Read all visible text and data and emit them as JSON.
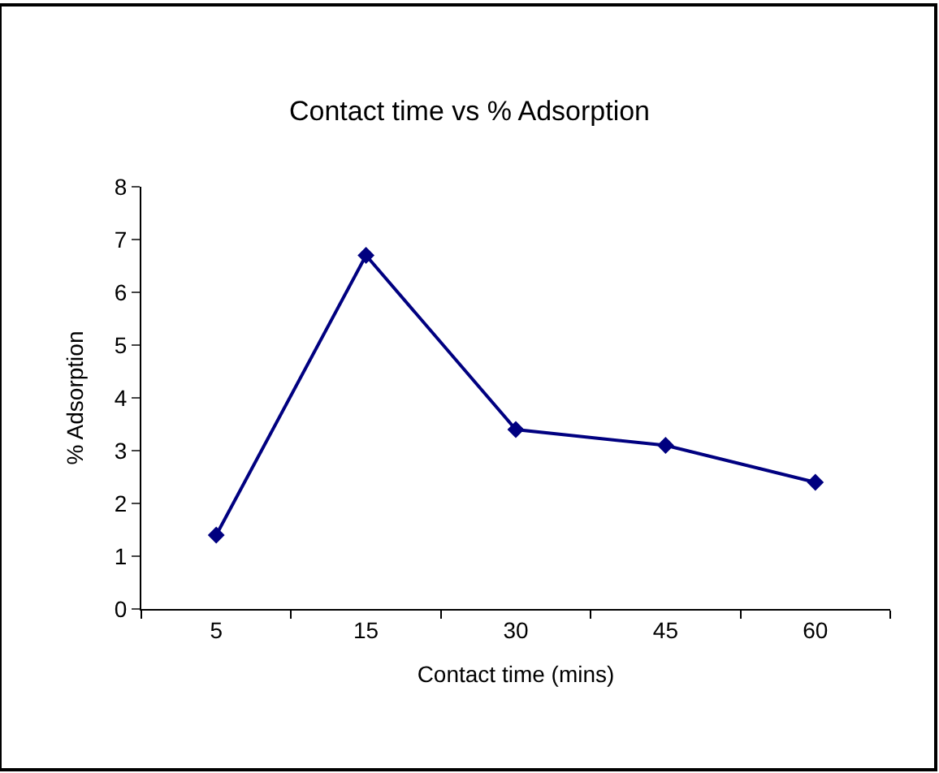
{
  "chart_data": {
    "type": "line",
    "title": "Contact time vs % Adsorption",
    "xlabel": "Contact time (mins)",
    "ylabel": "% Adsorption",
    "categories": [
      "5",
      "15",
      "30",
      "45",
      "60"
    ],
    "series": [
      {
        "color": "#000080",
        "values": [
          1.4,
          6.7,
          3.4,
          3.1,
          2.4
        ]
      }
    ],
    "ylim": [
      0,
      8
    ],
    "yticks": [
      0,
      1,
      2,
      3,
      4,
      5,
      6,
      7,
      8
    ],
    "marker": "diamond",
    "line_style": "solid"
  }
}
